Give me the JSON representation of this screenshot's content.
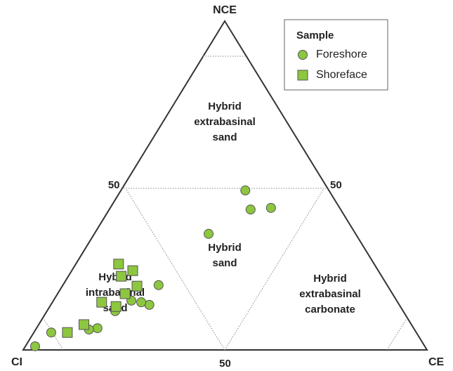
{
  "chart_data": {
    "type": "ternary",
    "apex_labels": {
      "top": "NCE",
      "left": "CI",
      "right": "CE"
    },
    "left_ticks": [
      50
    ],
    "right_ticks": [
      50
    ],
    "bottom_ticks": [
      50
    ],
    "legend_title": "Sample",
    "regions": [
      {
        "lines": [
          "Hybrid",
          "extrabasinal",
          "sand"
        ]
      },
      {
        "lines": [
          "Hybrid",
          "sand"
        ]
      },
      {
        "lines": [
          "Hybrid",
          "intrabasinal",
          "sand"
        ]
      },
      {
        "lines": [
          "Hybrid",
          "extrabasinal",
          "carbonate"
        ]
      }
    ],
    "series": [
      {
        "name": "Foreshore",
        "marker": "circle",
        "color": "#8dc63f",
        "nce": [
          48.5,
          42.7,
          43.2,
          35.3,
          19.7,
          13.7,
          14.5,
          15.0,
          11.8,
          6.6,
          6.2,
          5.3,
          1.1
        ],
        "ce": [
          30.8,
          35.0,
          39.8,
          28.3,
          23.7,
          24.4,
          22.0,
          19.3,
          16.9,
          15.1,
          13.2,
          4.3,
          2.4
        ],
        "ci": [
          20.7,
          22.3,
          17.0,
          36.4,
          56.6,
          61.9,
          63.5,
          65.7,
          71.3,
          78.3,
          80.6,
          90.4,
          96.5
        ]
      },
      {
        "name": "Shoreface",
        "marker": "square",
        "color": "#8dc63f",
        "nce": [
          26.1,
          24.1,
          22.4,
          19.4,
          17.1,
          14.5,
          13.2,
          7.7,
          5.3
        ],
        "ce": [
          10.6,
          15.1,
          13.1,
          18.5,
          16.7,
          12.2,
          16.4,
          11.2,
          8.3
        ],
        "ci": [
          63.3,
          60.8,
          64.5,
          62.1,
          66.2,
          73.3,
          70.4,
          81.1,
          86.4
        ]
      }
    ]
  }
}
